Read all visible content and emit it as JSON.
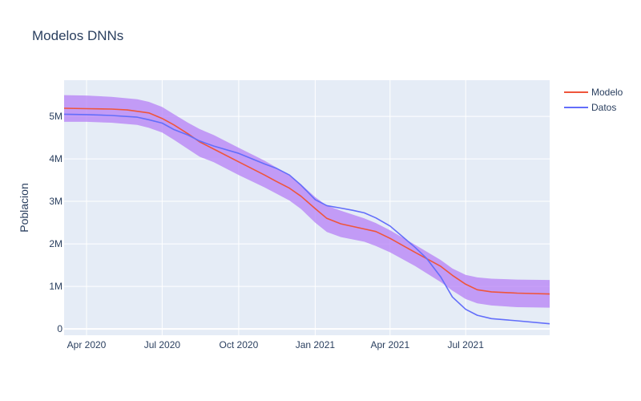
{
  "chart_data": {
    "type": "line",
    "title": "Modelos DNNs",
    "xlabel": "",
    "ylabel": "Poblacion",
    "xlim": [
      "2020-03-05",
      "2021-10-10"
    ],
    "ylim": [
      -150000,
      5850000
    ],
    "x_ticks": [
      {
        "date": "2020-04-01",
        "label": "Apr 2020"
      },
      {
        "date": "2020-07-01",
        "label": "Jul 2020"
      },
      {
        "date": "2020-10-01",
        "label": "Oct 2020"
      },
      {
        "date": "2021-01-01",
        "label": "Jan 2021"
      },
      {
        "date": "2021-04-01",
        "label": "Apr 2021"
      },
      {
        "date": "2021-07-01",
        "label": "Jul 2021"
      }
    ],
    "y_ticks": [
      {
        "value": 0,
        "label": "0"
      },
      {
        "value": 1000000,
        "label": "1M"
      },
      {
        "value": 2000000,
        "label": "2M"
      },
      {
        "value": 3000000,
        "label": "3M"
      },
      {
        "value": 4000000,
        "label": "4M"
      },
      {
        "value": 5000000,
        "label": "5M"
      }
    ],
    "grid": true,
    "legend_position": "top-right",
    "band": {
      "color": "#b580f5",
      "x": [
        "2020-03-05",
        "2020-04-01",
        "2020-05-01",
        "2020-06-01",
        "2020-06-15",
        "2020-07-01",
        "2020-07-15",
        "2020-08-01",
        "2020-08-15",
        "2020-09-01",
        "2020-10-01",
        "2020-11-01",
        "2020-12-01",
        "2020-12-15",
        "2021-01-01",
        "2021-01-15",
        "2021-02-01",
        "2021-03-01",
        "2021-03-15",
        "2021-04-01",
        "2021-05-01",
        "2021-06-01",
        "2021-06-15",
        "2021-07-01",
        "2021-07-15",
        "2021-08-01",
        "2021-09-01",
        "2021-10-10"
      ],
      "upper": [
        5500000,
        5490000,
        5460000,
        5400000,
        5340000,
        5220000,
        5050000,
        4850000,
        4700000,
        4560000,
        4260000,
        3960000,
        3620000,
        3400000,
        3100000,
        2900000,
        2780000,
        2600000,
        2490000,
        2320000,
        1980000,
        1620000,
        1420000,
        1270000,
        1210000,
        1180000,
        1160000,
        1150000
      ],
      "lower": [
        4870000,
        4870000,
        4850000,
        4800000,
        4730000,
        4620000,
        4450000,
        4230000,
        4050000,
        3920000,
        3620000,
        3330000,
        3020000,
        2820000,
        2500000,
        2280000,
        2160000,
        2050000,
        1950000,
        1800000,
        1480000,
        1100000,
        900000,
        700000,
        600000,
        550000,
        510000,
        500000
      ]
    },
    "series": [
      {
        "name": "Modelo",
        "color": "#ef553b",
        "x": [
          "2020-03-05",
          "2020-04-01",
          "2020-05-01",
          "2020-05-20",
          "2020-06-15",
          "2020-07-01",
          "2020-07-15",
          "2020-08-01",
          "2020-08-15",
          "2020-09-01",
          "2020-10-01",
          "2020-11-01",
          "2020-11-15",
          "2020-12-01",
          "2020-12-15",
          "2021-01-01",
          "2021-01-15",
          "2021-02-01",
          "2021-03-01",
          "2021-03-15",
          "2021-04-01",
          "2021-05-01",
          "2021-06-01",
          "2021-06-15",
          "2021-07-01",
          "2021-07-15",
          "2021-08-01",
          "2021-09-01",
          "2021-10-10"
        ],
        "values": [
          5190000,
          5180000,
          5170000,
          5150000,
          5080000,
          4950000,
          4800000,
          4590000,
          4400000,
          4230000,
          3930000,
          3620000,
          3470000,
          3310000,
          3120000,
          2830000,
          2600000,
          2470000,
          2350000,
          2290000,
          2130000,
          1800000,
          1470000,
          1260000,
          1050000,
          920000,
          870000,
          840000,
          820000
        ]
      },
      {
        "name": "Datos",
        "color": "#636efa",
        "x": [
          "2020-03-05",
          "2020-04-01",
          "2020-05-01",
          "2020-06-01",
          "2020-06-15",
          "2020-07-01",
          "2020-07-15",
          "2020-08-01",
          "2020-08-15",
          "2020-09-01",
          "2020-10-01",
          "2020-11-01",
          "2020-11-15",
          "2020-12-01",
          "2020-12-15",
          "2021-01-01",
          "2021-01-15",
          "2021-02-01",
          "2021-02-15",
          "2021-03-01",
          "2021-03-15",
          "2021-04-01",
          "2021-05-01",
          "2021-05-15",
          "2021-06-01",
          "2021-06-15",
          "2021-07-01",
          "2021-07-15",
          "2021-08-01",
          "2021-09-01",
          "2021-10-10"
        ],
        "values": [
          5050000,
          5040000,
          5020000,
          4980000,
          4920000,
          4840000,
          4690000,
          4560000,
          4420000,
          4300000,
          4130000,
          3880000,
          3780000,
          3620000,
          3380000,
          3040000,
          2900000,
          2840000,
          2790000,
          2730000,
          2610000,
          2420000,
          1920000,
          1660000,
          1220000,
          750000,
          460000,
          320000,
          240000,
          190000,
          120000
        ]
      }
    ]
  }
}
